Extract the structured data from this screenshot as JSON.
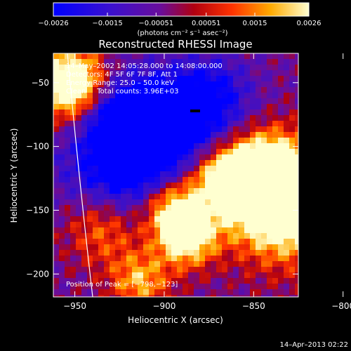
{
  "chart_data": {
    "type": "heatmap",
    "title": "Reconstructed RHESSI Image",
    "xlabel": "Heliocentric X (arcsec)",
    "ylabel": "Heliocentric Y (arcsec)",
    "xlim": [
      -962,
      -825
    ],
    "ylim": [
      -218,
      -27
    ],
    "xticks": [
      -950,
      -900,
      -850,
      -800
    ],
    "xtick_labels": [
      "−950",
      "−900",
      "−850",
      "−800"
    ],
    "yticks": [
      -50,
      -100,
      -150,
      -200
    ],
    "ytick_labels": [
      "−50",
      "−100",
      "−150",
      "−200"
    ],
    "colorbar": {
      "range": [
        -0.0026,
        0.0026
      ],
      "ticks": [
        -0.0026,
        -0.0015,
        -0.00051,
        0.00051,
        0.0015,
        0.0026
      ],
      "tick_labels": [
        "−0.0026",
        "−0.0015",
        "−0.00051",
        "0.00051",
        "0.0015",
        "0.0026"
      ],
      "units": "(photons cm⁻² s⁻¹ asec⁻²)"
    },
    "annotations": [
      "14–May–2002 14:05:28.000 to 14:08:00.000",
      "Detectors: 4F 5F 6F 7F 8F, Att 1",
      "Energy Range: 25.0 – 50.0 keV",
      "Clean     Total counts: 3.96E+03"
    ],
    "peak_label": "Position of Peak = [−798,−123]",
    "peak": [
      -798,
      -123
    ],
    "grid": false
  },
  "footer": {
    "date": "14–Apr–2013 02:22"
  },
  "colors": {
    "background": "#000000",
    "colormap": [
      "#0000ff",
      "#6a0dad",
      "#cc0000",
      "#ff6600",
      "#ffcc00",
      "#ffffcc"
    ]
  }
}
